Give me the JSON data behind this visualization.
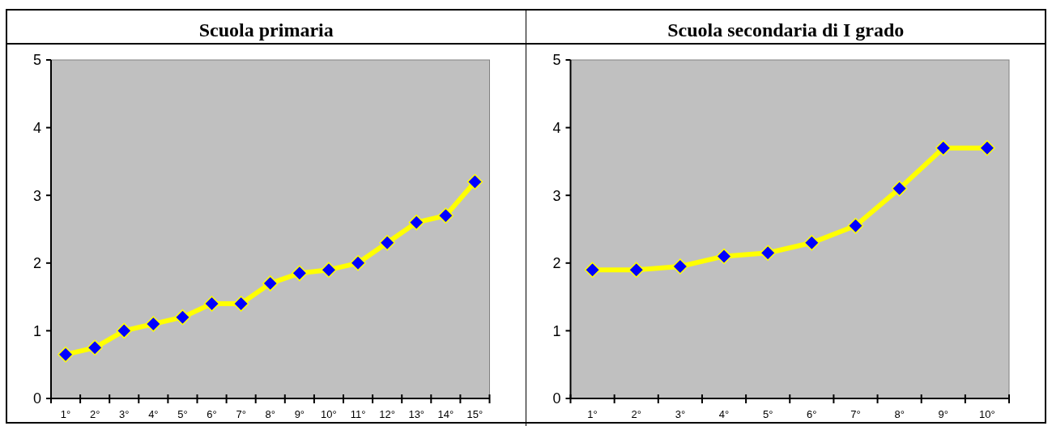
{
  "chart_data": [
    {
      "type": "line",
      "title": "Scuola primaria",
      "categories": [
        "1°",
        "2°",
        "3°",
        "4°",
        "5°",
        "6°",
        "7°",
        "8°",
        "9°",
        "10°",
        "11°",
        "12°",
        "13°",
        "14°",
        "15°"
      ],
      "series": [
        {
          "color": "#ffff00",
          "colors": [
            "#0000ff",
            "#0000ff",
            "#0000ff",
            "#0000ff",
            "#0000ff",
            "#0000ff",
            "#0000ff",
            "#0000ff",
            "#0000ff",
            "#0000ff",
            "#0000ff",
            "#0000ff",
            "#0000ff",
            "#0000ff",
            "#0000ff"
          ],
          "values": [
            0.65,
            0.75,
            1.0,
            1.1,
            1.2,
            1.4,
            1.4,
            1.7,
            1.85,
            1.9,
            2.0,
            2.3,
            2.6,
            2.7,
            3.2
          ]
        }
      ],
      "ylim": [
        0,
        5
      ],
      "yticks": [
        0,
        1,
        2,
        3,
        4,
        5
      ],
      "grid": false,
      "marker": "diamond",
      "line_style": "solid"
    },
    {
      "type": "line",
      "title": "Scuola secondaria di I grado",
      "categories": [
        "1°",
        "2°",
        "3°",
        "4°",
        "5°",
        "6°",
        "7°",
        "8°",
        "9°",
        "10°"
      ],
      "series": [
        {
          "color": "#ffff00",
          "colors": [
            "#0000ff",
            "#0000ff",
            "#0000ff",
            "#0000ff",
            "#0000ff",
            "#0000ff",
            "#0000ff",
            "#0000ff",
            "#0000ff",
            "#0000ff"
          ],
          "values": [
            1.9,
            1.9,
            1.95,
            2.1,
            2.15,
            2.3,
            2.55,
            3.1,
            3.7,
            3.7
          ]
        }
      ],
      "ylim": [
        0,
        5
      ],
      "yticks": [
        0,
        1,
        2,
        3,
        4,
        5
      ],
      "grid": false,
      "marker": "diamond",
      "line_style": "solid"
    }
  ]
}
